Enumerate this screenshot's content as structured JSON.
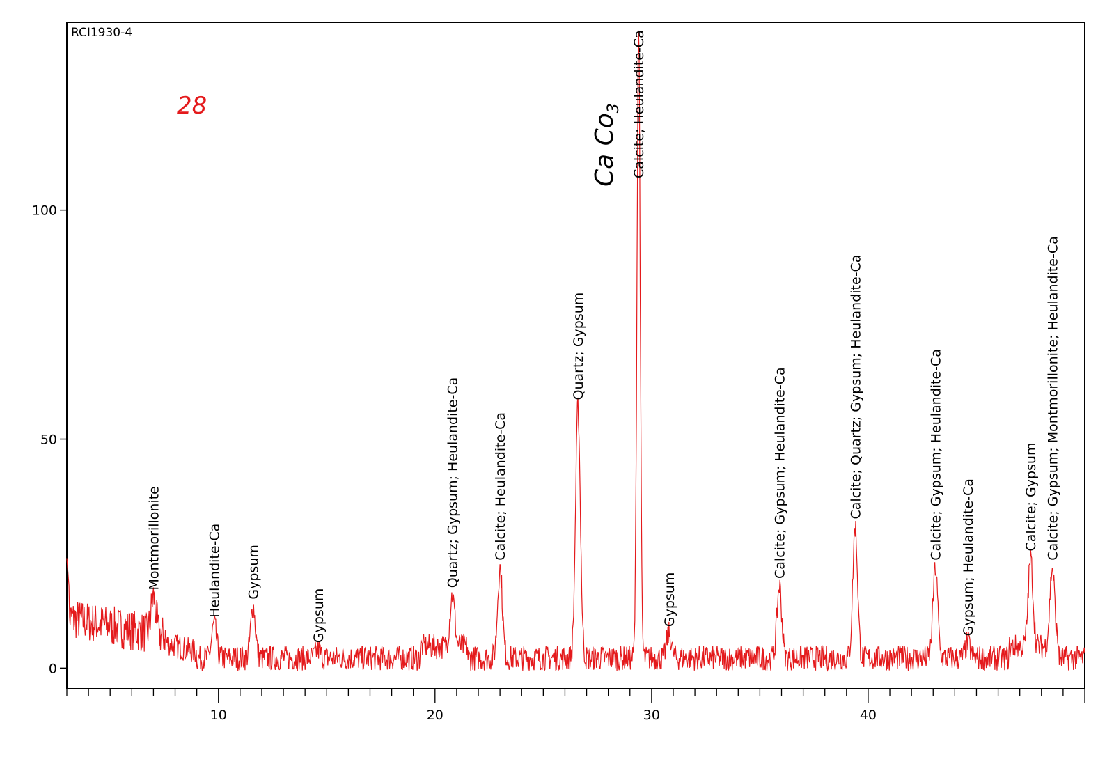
{
  "chart_data": {
    "type": "line",
    "sample_label": "RCI1930-4",
    "series_color": "#e41a1c",
    "xlim": [
      3.0,
      50.0
    ],
    "ylim": [
      -4.5,
      141.0
    ],
    "x_ticks_major": [
      10,
      20,
      30,
      40
    ],
    "x_ticks_major_labels": [
      "10",
      "20",
      "30",
      "40"
    ],
    "y_ticks": [
      0,
      50,
      100
    ],
    "y_tick_labels": [
      "0",
      "50",
      "100"
    ],
    "grid": false,
    "legend": "none",
    "peaks": [
      {
        "x": 7.0,
        "y": 15.5,
        "label": "Montmorillonite"
      },
      {
        "x": 9.8,
        "y": 9.5,
        "label": "Heulandite-Ca"
      },
      {
        "x": 11.6,
        "y": 13.5,
        "label": "Gypsum"
      },
      {
        "x": 14.6,
        "y": 4.0,
        "label": "Gypsum"
      },
      {
        "x": 20.8,
        "y": 16.0,
        "label": "Quartz; Gypsum; Heulandite-Ca"
      },
      {
        "x": 23.0,
        "y": 22.0,
        "label": "Calcite; Heulandite-Ca"
      },
      {
        "x": 26.6,
        "y": 57.0,
        "label": "Quartz; Gypsum"
      },
      {
        "x": 29.4,
        "y": 140.0,
        "label": "Calcite; Heulandite-Ca"
      },
      {
        "x": 30.8,
        "y": 7.5,
        "label": "Gypsum"
      },
      {
        "x": 35.9,
        "y": 18.0,
        "label": "Calcite; Gypsum; Heulandite-Ca"
      },
      {
        "x": 39.4,
        "y": 31.0,
        "label": "Calcite; Quartz; Gypsum; Heulandite-Ca"
      },
      {
        "x": 43.1,
        "y": 22.0,
        "label": "Calcite; Gypsum; Heulandite-Ca"
      },
      {
        "x": 44.6,
        "y": 5.5,
        "label": "Gypsum; Heulandite-Ca"
      },
      {
        "x": 47.5,
        "y": 24.0,
        "label": "Calcite; Gypsum"
      },
      {
        "x": 48.5,
        "y": 22.0,
        "label": "Calcite; Gypsum; Montmorillonite; Heulandite-Ca"
      }
    ],
    "annotations": [
      {
        "text": "28",
        "color": "#e41a1c"
      },
      {
        "text": "Ca Co",
        "subscript": "3",
        "color": "#000000"
      }
    ]
  }
}
